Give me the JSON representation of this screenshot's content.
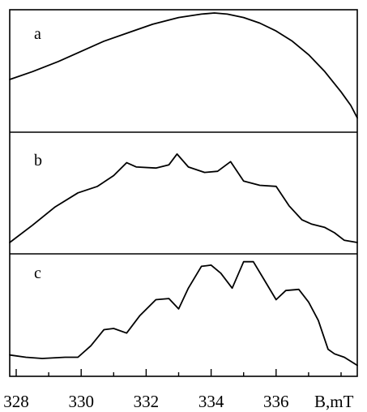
{
  "chart_data": {
    "type": "line",
    "title": "",
    "xlabel": "B,mT",
    "ylabel": "",
    "xlim": [
      327.8,
      338.5
    ],
    "grid": false,
    "x_ticks": [
      "328",
      "330",
      "332",
      "334",
      "336"
    ],
    "panels": [
      {
        "label": "a",
        "ylim": [
          0,
          1
        ],
        "series": [
          {
            "x": [
              327.8,
              328.5,
              329.3,
              330.0,
              330.7,
              331.5,
              332.2,
              333.0,
              333.7,
              334.1,
              334.5,
              335.0,
              335.5,
              336.0,
              336.5,
              337.0,
              337.5,
              338.0,
              338.3,
              338.5
            ],
            "y": [
              0.41,
              0.48,
              0.57,
              0.66,
              0.75,
              0.83,
              0.9,
              0.96,
              0.99,
              1.0,
              0.99,
              0.96,
              0.91,
              0.84,
              0.75,
              0.63,
              0.48,
              0.3,
              0.18,
              0.07
            ]
          }
        ]
      },
      {
        "label": "b",
        "ylim": [
          0,
          1
        ],
        "series": [
          {
            "x": [
              327.8,
              328.5,
              329.2,
              329.9,
              330.5,
              331.0,
              331.4,
              331.7,
              332.3,
              332.7,
              332.95,
              333.3,
              333.8,
              334.2,
              334.6,
              335.0,
              335.5,
              336.0,
              336.4,
              336.8,
              337.1,
              337.5,
              337.8,
              338.1,
              338.5
            ],
            "y": [
              0.0,
              0.16,
              0.33,
              0.46,
              0.52,
              0.62,
              0.74,
              0.7,
              0.69,
              0.72,
              0.82,
              0.7,
              0.65,
              0.66,
              0.75,
              0.57,
              0.53,
              0.52,
              0.34,
              0.21,
              0.17,
              0.14,
              0.09,
              0.02,
              0.0
            ]
          }
        ]
      },
      {
        "label": "c",
        "ylim": [
          0,
          1
        ],
        "series": [
          {
            "x": [
              327.8,
              328.3,
              328.8,
              329.5,
              329.9,
              330.3,
              330.7,
              331.0,
              331.4,
              331.8,
              332.3,
              332.7,
              333.0,
              333.3,
              333.7,
              334.0,
              334.3,
              334.65,
              335.0,
              335.3,
              335.6,
              336.0,
              336.3,
              336.7,
              337.0,
              337.3,
              337.6,
              337.8,
              338.1,
              338.5
            ],
            "y": [
              0.15,
              0.13,
              0.12,
              0.13,
              0.13,
              0.23,
              0.37,
              0.38,
              0.34,
              0.49,
              0.63,
              0.64,
              0.55,
              0.73,
              0.92,
              0.93,
              0.86,
              0.73,
              0.96,
              0.96,
              0.82,
              0.63,
              0.71,
              0.72,
              0.61,
              0.45,
              0.2,
              0.16,
              0.13,
              0.06
            ]
          }
        ]
      }
    ]
  }
}
